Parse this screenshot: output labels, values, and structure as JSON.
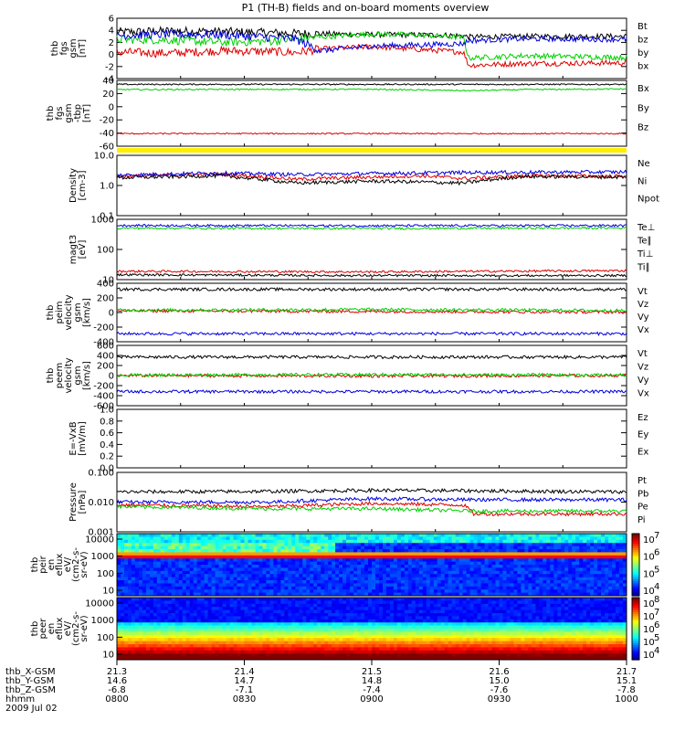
{
  "title": "P1 (TH-B) fields and on-board moments overview",
  "colors": {
    "black": "#000000",
    "red": "#dd0000",
    "green": "#00d000",
    "blue": "#0000dd",
    "yellow": "#ffee00"
  },
  "chart_data": {
    "type": "line",
    "title": "P1 (TH-B) fields and on-board moments overview",
    "x_axis": {
      "date": "2009 Jul 02",
      "row_labels": [
        "thb_X-GSM",
        "thb_Y-GSM",
        "thb_Z-GSM",
        "hhmm"
      ],
      "ticks": [
        {
          "x": "21.3",
          "y": "14.6",
          "z": "-6.8",
          "t": "0800"
        },
        {
          "x": "21.4",
          "y": "14.7",
          "z": "-7.1",
          "t": "0830"
        },
        {
          "x": "21.5",
          "y": "14.8",
          "z": "-7.4",
          "t": "0900"
        },
        {
          "x": "21.6",
          "y": "15.0",
          "z": "-7.6",
          "t": "0930"
        },
        {
          "x": "21.7",
          "y": "15.1",
          "z": "-7.8",
          "t": "1000"
        }
      ]
    },
    "panels": [
      {
        "id": "fgs",
        "ylabel": [
          "thb",
          "fgs",
          "gsm",
          "[nT]"
        ],
        "yrange": [
          -4,
          6
        ],
        "scale": "linear",
        "yticks": [
          "6",
          "4",
          "2",
          "0",
          "-2",
          "-4"
        ],
        "series": [
          {
            "name": "Bt",
            "color": "#000000",
            "points": [
              [
                0,
                3.7
              ],
              [
                0.1,
                3.9
              ],
              [
                0.2,
                3.8
              ],
              [
                0.35,
                3.5
              ],
              [
                0.5,
                3.3
              ],
              [
                0.65,
                3.2
              ],
              [
                0.68,
                3.1
              ],
              [
                0.69,
                2.9
              ],
              [
                0.8,
                3.0
              ],
              [
                1,
                3.0
              ]
            ]
          },
          {
            "name": "bz",
            "color": "#dd0000",
            "points": [
              [
                0,
                0.4
              ],
              [
                0.1,
                0.2
              ],
              [
                0.2,
                0.6
              ],
              [
                0.3,
                0.5
              ],
              [
                0.35,
                0.3
              ],
              [
                0.4,
                0.9
              ],
              [
                0.5,
                1.3
              ],
              [
                0.6,
                0.8
              ],
              [
                0.68,
                0.4
              ],
              [
                0.69,
                -1.8
              ],
              [
                0.8,
                -1.5
              ],
              [
                1,
                -1.4
              ]
            ]
          },
          {
            "name": "by",
            "color": "#00d000",
            "points": [
              [
                0,
                2.5
              ],
              [
                0.1,
                2.4
              ],
              [
                0.2,
                2.0
              ],
              [
                0.3,
                2.2
              ],
              [
                0.4,
                2.9
              ],
              [
                0.5,
                3.4
              ],
              [
                0.6,
                3.2
              ],
              [
                0.68,
                2.8
              ],
              [
                0.69,
                -0.6
              ],
              [
                0.8,
                -0.2
              ],
              [
                1,
                -0.5
              ]
            ]
          },
          {
            "name": "bx",
            "color": "#0000dd",
            "points": [
              [
                0,
                3.2
              ],
              [
                0.1,
                3.3
              ],
              [
                0.2,
                3.3
              ],
              [
                0.35,
                2.6
              ],
              [
                0.4,
                0.6
              ],
              [
                0.5,
                1.4
              ],
              [
                0.6,
                1.6
              ],
              [
                0.68,
                1.8
              ],
              [
                0.69,
                2.3
              ],
              [
                0.8,
                2.6
              ],
              [
                1,
                2.5
              ]
            ]
          }
        ]
      },
      {
        "id": "fgs_dsl",
        "ylabel": [
          "thb",
          "fgs",
          "gsm",
          "-tbp",
          "[nT]"
        ],
        "yrange": [
          -70,
          45
        ],
        "scale": "linear",
        "yticks": [
          "40",
          "20",
          "0",
          "-20",
          "-40",
          "-60"
        ],
        "series": [
          {
            "name": "Bx",
            "color": "#000000",
            "points": [
              [
                0,
                38
              ],
              [
                1,
                38
              ]
            ]
          },
          {
            "name": "By",
            "color": "#00d000",
            "points": [
              [
                0,
                29
              ],
              [
                0.5,
                29.5
              ],
              [
                0.69,
                27
              ],
              [
                0.8,
                29
              ],
              [
                1,
                30
              ]
            ]
          },
          {
            "name": "Bz",
            "color": "#dd0000",
            "points": [
              [
                0,
                -48
              ],
              [
                1,
                -48
              ]
            ]
          }
        ]
      },
      {
        "id": "density",
        "ylabel": [
          "Density",
          "[cm-3]"
        ],
        "yrange": [
          0.1,
          10
        ],
        "scale": "log",
        "yticks": [
          "10.0",
          "1.0",
          "0.1"
        ],
        "series": [
          {
            "name": "Ne",
            "color": "#dd0000",
            "points": [
              [
                0,
                2.0
              ],
              [
                0.2,
                2.4
              ],
              [
                0.35,
                1.6
              ],
              [
                0.5,
                1.9
              ],
              [
                0.6,
                2.1
              ],
              [
                0.68,
                1.7
              ],
              [
                0.8,
                2.1
              ],
              [
                1,
                2.0
              ]
            ]
          },
          {
            "name": "Ni",
            "color": "#000000",
            "points": [
              [
                0,
                1.8
              ],
              [
                0.2,
                2.1
              ],
              [
                0.35,
                1.2
              ],
              [
                0.5,
                1.4
              ],
              [
                0.6,
                1.3
              ],
              [
                0.68,
                1.2
              ],
              [
                0.8,
                2.0
              ],
              [
                1,
                1.9
              ]
            ]
          },
          {
            "name": "Npot",
            "color": "#0000dd",
            "points": [
              [
                0,
                2.2
              ],
              [
                0.2,
                2.6
              ],
              [
                0.35,
                2.3
              ],
              [
                0.5,
                2.5
              ],
              [
                0.7,
                2.7
              ],
              [
                1,
                2.8
              ]
            ]
          }
        ]
      },
      {
        "id": "magt3",
        "ylabel": [
          "magt3",
          "[eV]"
        ],
        "yrange": [
          10,
          1500
        ],
        "scale": "log",
        "yticks": [
          "1000",
          "100",
          "10"
        ],
        "series": [
          {
            "name": "Te⊥",
            "color": "#dd0000",
            "points": [
              [
                0,
                20
              ],
              [
                0.5,
                19
              ],
              [
                1,
                21
              ]
            ]
          },
          {
            "name": "Te∥",
            "color": "#000000",
            "points": [
              [
                0,
                15
              ],
              [
                0.5,
                14
              ],
              [
                1,
                14
              ]
            ]
          },
          {
            "name": "Ti⊥",
            "color": "#00d000",
            "points": [
              [
                0,
                720
              ],
              [
                0.5,
                700
              ],
              [
                1,
                730
              ]
            ]
          },
          {
            "name": "Ti∥",
            "color": "#0000dd",
            "points": [
              [
                0,
                900
              ],
              [
                0.5,
                880
              ],
              [
                1,
                890
              ]
            ]
          }
        ]
      },
      {
        "id": "peim",
        "ylabel": [
          "thb",
          "peim",
          "velocity",
          "gsm",
          "[km/s]"
        ],
        "yrange": [
          -450,
          420
        ],
        "scale": "linear",
        "yticks": [
          "400",
          "200",
          "0",
          "-200",
          "-400"
        ],
        "series": [
          {
            "name": "Vt",
            "color": "#000000",
            "points": [
              [
                0,
                330
              ],
              [
                0.5,
                330
              ],
              [
                1,
                330
              ]
            ]
          },
          {
            "name": "Vz",
            "color": "#dd0000",
            "points": [
              [
                0,
                10
              ],
              [
                0.5,
                0
              ],
              [
                1,
                -10
              ]
            ]
          },
          {
            "name": "Vy",
            "color": "#00d000",
            "points": [
              [
                0,
                20
              ],
              [
                0.5,
                30
              ],
              [
                1,
                15
              ]
            ]
          },
          {
            "name": "Vx",
            "color": "#0000dd",
            "points": [
              [
                0,
                -330
              ],
              [
                0.5,
                -330
              ],
              [
                1,
                -330
              ]
            ]
          }
        ]
      },
      {
        "id": "peem",
        "ylabel": [
          "thb",
          "peem",
          "velocity",
          "gsm",
          "[km/s]"
        ],
        "yrange": [
          -620,
          620
        ],
        "scale": "linear",
        "yticks": [
          "600",
          "400",
          "200",
          "0",
          "-200",
          "-400",
          "-600"
        ],
        "series": [
          {
            "name": "Vt",
            "color": "#000000",
            "points": [
              [
                0,
                380
              ],
              [
                0.5,
                380
              ],
              [
                1,
                380
              ]
            ]
          },
          {
            "name": "Vz",
            "color": "#dd0000",
            "points": [
              [
                0,
                0
              ],
              [
                0.5,
                -10
              ],
              [
                1,
                0
              ]
            ]
          },
          {
            "name": "Vy",
            "color": "#00d000",
            "points": [
              [
                0,
                10
              ],
              [
                0.5,
                20
              ],
              [
                1,
                10
              ]
            ]
          },
          {
            "name": "Vx",
            "color": "#0000dd",
            "points": [
              [
                0,
                -330
              ],
              [
                0.5,
                -330
              ],
              [
                1,
                -330
              ]
            ]
          }
        ]
      },
      {
        "id": "efield",
        "ylabel": [
          "E=-VxB",
          "[mV/m]"
        ],
        "yrange": [
          0,
          1
        ],
        "scale": "linear",
        "yticks": [
          "1.0",
          "0.8",
          "0.6",
          "0.4",
          "0.2",
          "0.0"
        ],
        "series": [
          {
            "name": "Ez",
            "color": "#dd0000",
            "points": []
          },
          {
            "name": "Ey",
            "color": "#00d000",
            "points": []
          },
          {
            "name": "Ex",
            "color": "#0000dd",
            "points": []
          }
        ]
      },
      {
        "id": "pressure",
        "ylabel": [
          "Pressure",
          "[nPa]"
        ],
        "yrange": [
          0.001,
          0.1
        ],
        "scale": "log",
        "yticks": [
          "0.100",
          "0.010",
          "0.001"
        ],
        "series": [
          {
            "name": "Pt",
            "color": "#000000",
            "points": [
              [
                0,
                0.022
              ],
              [
                0.3,
                0.023
              ],
              [
                0.5,
                0.025
              ],
              [
                0.7,
                0.024
              ],
              [
                1,
                0.022
              ]
            ]
          },
          {
            "name": "Pb",
            "color": "#dd0000",
            "points": [
              [
                0,
                0.008
              ],
              [
                0.3,
                0.007
              ],
              [
                0.5,
                0.009
              ],
              [
                0.68,
                0.008
              ],
              [
                0.7,
                0.004
              ],
              [
                1,
                0.004
              ]
            ]
          },
          {
            "name": "Pe",
            "color": "#00d000",
            "points": [
              [
                0,
                0.007
              ],
              [
                0.3,
                0.006
              ],
              [
                0.5,
                0.006
              ],
              [
                0.7,
                0.005
              ],
              [
                1,
                0.005
              ]
            ]
          },
          {
            "name": "Pi",
            "color": "#0000dd",
            "points": [
              [
                0,
                0.01
              ],
              [
                0.3,
                0.01
              ],
              [
                0.5,
                0.013
              ],
              [
                0.7,
                0.012
              ],
              [
                1,
                0.012
              ]
            ]
          }
        ]
      }
    ],
    "spectrograms": [
      {
        "id": "peir",
        "ylabel": [
          "thb",
          "peir",
          "en",
          "eflux",
          "eV/",
          "(cm2-s-",
          "sr-eV)"
        ],
        "yticks": [
          "10000",
          "1000",
          "100",
          "10"
        ],
        "colorbar_ticks": [
          "10",
          "10",
          "10",
          "10"
        ],
        "colorbar_exp": [
          "7",
          "6",
          "5",
          "4"
        ]
      },
      {
        "id": "peer",
        "ylabel": [
          "thb",
          "peer",
          "en",
          "eflux",
          "eV/",
          "(cm2-s-",
          "sr-eV)"
        ],
        "yticks": [
          "10000",
          "1000",
          "100",
          "10"
        ],
        "colorbar_ticks": [
          "10",
          "10",
          "10",
          "10",
          "10"
        ],
        "colorbar_exp": [
          "8",
          "7",
          "6",
          "5",
          "4"
        ]
      }
    ]
  }
}
